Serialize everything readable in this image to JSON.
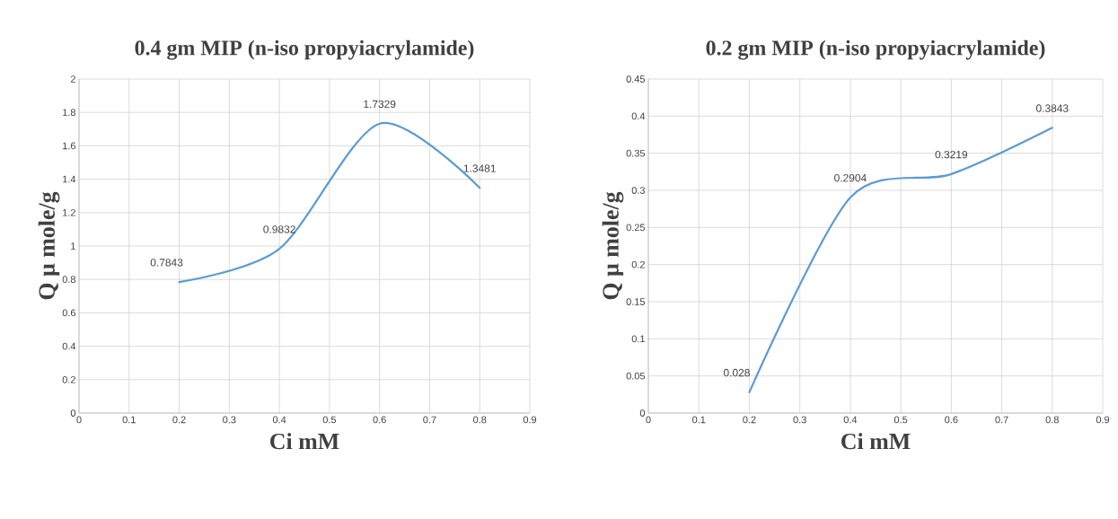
{
  "chart_data": [
    {
      "type": "line",
      "title": "0.4 gm MIP (n-iso propyiacrylamide)",
      "xlabel": "Ci mM",
      "ylabel": "Q μ mole/g",
      "x": [
        0.2,
        0.4,
        0.6,
        0.8
      ],
      "values": [
        0.7843,
        0.9832,
        1.7329,
        1.3481
      ],
      "color": "#5b9bd5",
      "xlim": [
        0,
        0.9
      ],
      "ylim": [
        0,
        2
      ],
      "xticks": [
        0,
        0.1,
        0.2,
        0.3,
        0.4,
        0.5,
        0.6,
        0.7,
        0.8,
        0.9
      ],
      "yticks": [
        0,
        0.2,
        0.4,
        0.6,
        0.8,
        1,
        1.2,
        1.4,
        1.6,
        1.8,
        2
      ],
      "grid": true,
      "data_labels": true,
      "marker": "none"
    },
    {
      "type": "line",
      "title": "0.2 gm MIP (n-iso propyiacrylamide)",
      "xlabel": "Ci mM",
      "ylabel": "Q μ mole/g",
      "x": [
        0.2,
        0.4,
        0.6,
        0.8
      ],
      "values": [
        0.028,
        0.2904,
        0.3219,
        0.3843
      ],
      "color": "#5b9bd5",
      "xlim": [
        0,
        0.9
      ],
      "ylim": [
        0,
        0.45
      ],
      "xticks": [
        0,
        0.1,
        0.2,
        0.3,
        0.4,
        0.5,
        0.6,
        0.7,
        0.8,
        0.9
      ],
      "yticks": [
        0,
        0.05,
        0.1,
        0.15,
        0.2,
        0.25,
        0.3,
        0.35,
        0.4,
        0.45
      ],
      "grid": true,
      "data_labels": true,
      "marker": "none"
    }
  ]
}
